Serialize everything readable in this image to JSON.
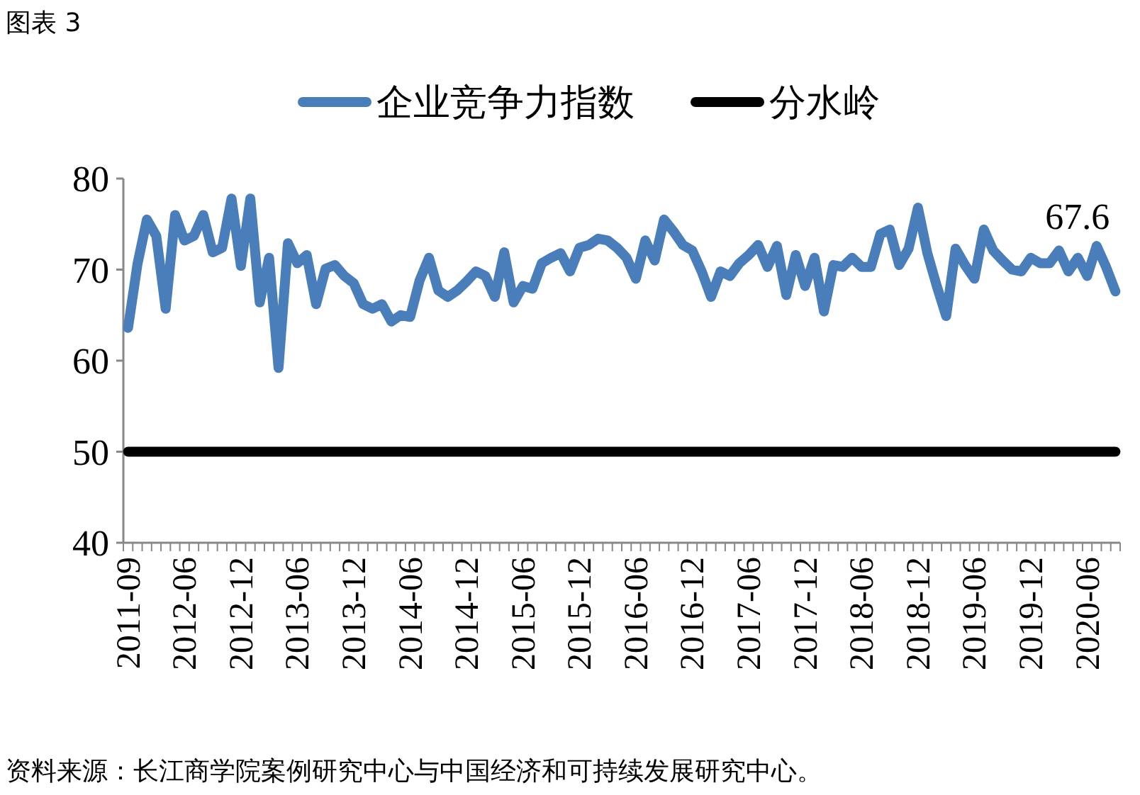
{
  "chart_data": {
    "type": "line",
    "title": "图表 3",
    "annotations": [
      "资料来源：长江商学院案例研究中心与中国经济和可持续发展研究中心。"
    ],
    "categories": [
      "2011-09",
      null,
      null,
      null,
      null,
      null,
      "2012-06",
      null,
      null,
      null,
      null,
      null,
      "2012-12",
      null,
      null,
      null,
      null,
      null,
      "2013-06",
      null,
      null,
      null,
      null,
      null,
      "2013-12",
      null,
      null,
      null,
      null,
      null,
      "2014-06",
      null,
      null,
      null,
      null,
      null,
      "2014-12",
      null,
      null,
      null,
      null,
      null,
      "2015-06",
      null,
      null,
      null,
      null,
      null,
      "2015-12",
      null,
      null,
      null,
      null,
      null,
      "2016-06",
      null,
      null,
      null,
      null,
      null,
      "2016-12",
      null,
      null,
      null,
      null,
      null,
      "2017-06",
      null,
      null,
      null,
      null,
      null,
      "2017-12",
      null,
      null,
      null,
      null,
      null,
      "2018-06",
      null,
      null,
      null,
      null,
      null,
      "2018-12",
      null,
      null,
      null,
      null,
      null,
      "2019-06",
      null,
      null,
      null,
      null,
      null,
      "2019-12",
      null,
      null,
      null,
      null,
      null,
      "2020-06",
      null,
      null,
      null
    ],
    "series": [
      {
        "name": "企业竞争力指数",
        "color": "#4a7ebb",
        "values": [
          63.6,
          70.6,
          75.5,
          73.7,
          65.7,
          76.0,
          73.2,
          73.7,
          76.0,
          71.9,
          72.4,
          77.8,
          70.4,
          77.8,
          66.4,
          71.3,
          59.2,
          72.9,
          70.7,
          71.6,
          66.2,
          70.1,
          70.5,
          69.3,
          68.5,
          66.2,
          65.7,
          66.2,
          64.3,
          65.0,
          64.8,
          68.8,
          71.3,
          67.7,
          67.0,
          67.7,
          68.7,
          69.8,
          69.3,
          67.0,
          71.9,
          66.4,
          68.2,
          67.9,
          70.7,
          71.3,
          71.8,
          69.8,
          72.4,
          72.7,
          73.4,
          73.2,
          72.4,
          71.3,
          69.0,
          73.2,
          71.0,
          75.5,
          74.2,
          72.7,
          72.1,
          69.8,
          67.0,
          69.8,
          69.3,
          70.7,
          71.6,
          72.7,
          70.3,
          72.6,
          67.2,
          71.6,
          68.2,
          71.3,
          65.4,
          70.5,
          70.3,
          71.3,
          70.3,
          70.3,
          73.9,
          74.4,
          70.5,
          72.3,
          76.8,
          71.8,
          68.2,
          64.9,
          72.3,
          70.5,
          69.0,
          74.4,
          72.1,
          71.0,
          70.0,
          69.8,
          71.3,
          70.7,
          70.7,
          72.1,
          69.8,
          71.3,
          69.3,
          72.6,
          70.3,
          67.6
        ],
        "value_labels": [
          null,
          null,
          null,
          null,
          null,
          null,
          null,
          null,
          null,
          null,
          null,
          null,
          null,
          null,
          null,
          null,
          null,
          null,
          null,
          null,
          null,
          null,
          null,
          null,
          null,
          null,
          null,
          null,
          null,
          null,
          null,
          null,
          null,
          null,
          null,
          null,
          null,
          null,
          null,
          null,
          null,
          null,
          null,
          null,
          null,
          null,
          null,
          null,
          null,
          null,
          null,
          null,
          null,
          null,
          null,
          null,
          null,
          null,
          null,
          null,
          null,
          null,
          null,
          null,
          null,
          null,
          null,
          null,
          null,
          null,
          null,
          null,
          null,
          null,
          null,
          null,
          null,
          null,
          null,
          null,
          null,
          null,
          null,
          null,
          null,
          null,
          null,
          null,
          null,
          null,
          null,
          null,
          null,
          null,
          null,
          null,
          null,
          null,
          null,
          null,
          null,
          null,
          null,
          null,
          null,
          "67.6"
        ]
      },
      {
        "name": "分水岭",
        "color": "#000000",
        "values": [
          50,
          50,
          50,
          50,
          50,
          50,
          50,
          50,
          50,
          50,
          50,
          50,
          50,
          50,
          50,
          50,
          50,
          50,
          50,
          50,
          50,
          50,
          50,
          50,
          50,
          50,
          50,
          50,
          50,
          50,
          50,
          50,
          50,
          50,
          50,
          50,
          50,
          50,
          50,
          50,
          50,
          50,
          50,
          50,
          50,
          50,
          50,
          50,
          50,
          50,
          50,
          50,
          50,
          50,
          50,
          50,
          50,
          50,
          50,
          50,
          50,
          50,
          50,
          50,
          50,
          50,
          50,
          50,
          50,
          50,
          50,
          50,
          50,
          50,
          50,
          50,
          50,
          50,
          50,
          50,
          50,
          50,
          50,
          50,
          50,
          50,
          50,
          50,
          50,
          50,
          50,
          50,
          50,
          50,
          50,
          50,
          50,
          50,
          50,
          50,
          50,
          50,
          50,
          50,
          50,
          50
        ]
      }
    ],
    "ylim": [
      40,
      80
    ],
    "yticks": [
      40,
      50,
      60,
      70,
      80
    ],
    "legend": "top"
  }
}
